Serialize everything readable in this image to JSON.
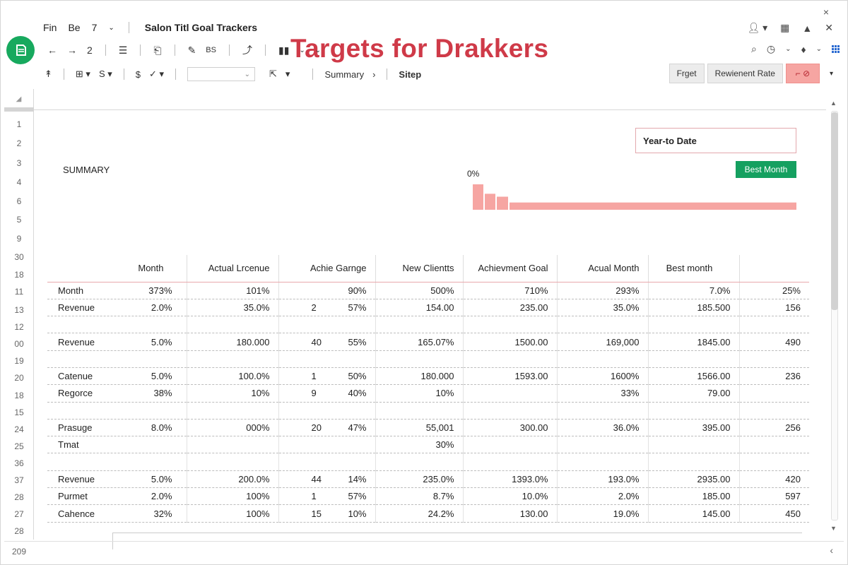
{
  "window": {
    "close_glyph": "×"
  },
  "menubar": {
    "items": [
      "Fin",
      "Be",
      "7"
    ],
    "doc_title": "Salon Titl Goal Trackers"
  },
  "headline": "Targets for Drakkers",
  "toolbar": {
    "undo": "←",
    "redo": "→",
    "count": "2",
    "font_size_label": "BS"
  },
  "formula_bar": {
    "alignment_label": "⁋",
    "currency_label": "$",
    "breadcrumb": [
      "Summary",
      "Sitep"
    ]
  },
  "right_buttons": {
    "primary": "Frget",
    "secondary": "Rewienent Rate"
  },
  "row_numbers": [
    "1",
    "2",
    "3",
    "4",
    "6",
    "5",
    "9",
    "30",
    "18",
    "11",
    "13",
    "12",
    "00",
    "19",
    "20",
    "18",
    "15",
    "24",
    "25",
    "36",
    "37",
    "28",
    "27",
    "28"
  ],
  "last_row_number": "209",
  "summary": {
    "label": "SUMMARY",
    "ytd_label": "Year-to Date",
    "best_month_button": "Best Month",
    "percent_label": "0%"
  },
  "sparkline": {
    "values": [
      35,
      22,
      18,
      10
    ]
  },
  "table": {
    "headers": [
      "Month",
      "Actual Lrcenue",
      "Achie Garnge",
      "New Clientts",
      "Achievment Goal",
      "Acual Month",
      "Best month",
      ""
    ],
    "rows": [
      {
        "name": "Month",
        "c1": "373%",
        "c2": "101%",
        "c3a": "",
        "c3b": "90%",
        "c4": "500%",
        "c5": "710%",
        "c6": "293%",
        "c7": "7.0%",
        "c8": "25%"
      },
      {
        "name": "Revenue",
        "c1": "2.0%",
        "c2": "35.0%",
        "c3a": "2",
        "c3b": "57%",
        "c4": "154.00",
        "c5": "235.00",
        "c6": "35.0%",
        "c7": "185.500",
        "c8": "156"
      },
      {
        "name": "",
        "c1": "",
        "c2": "",
        "c3a": "",
        "c3b": "",
        "c4": "",
        "c5": "",
        "c6": "",
        "c7": "",
        "c8": ""
      },
      {
        "name": "Revenue",
        "c1": "5.0%",
        "c2": "180.000",
        "c3a": "40",
        "c3b": "55%",
        "c4": "165.07%",
        "c5": "1500.00",
        "c6": "169,000",
        "c7": "1845.00",
        "c8": "490"
      },
      {
        "name": "",
        "c1": "",
        "c2": "",
        "c3a": "",
        "c3b": "",
        "c4": "",
        "c5": "",
        "c6": "",
        "c7": "",
        "c8": ""
      },
      {
        "name": "Catenue",
        "c1": "5.0%",
        "c2": "100.0%",
        "c3a": "1",
        "c3b": "50%",
        "c4": "180.000",
        "c5": "1593.00",
        "c6": "1600%",
        "c7": "1566.00",
        "c8": "236"
      },
      {
        "name": "Regorce",
        "c1": "38%",
        "c2": "10%",
        "c3a": "9",
        "c3b": "40%",
        "c4": "10%",
        "c5": "",
        "c6": "33%",
        "c7": "79.00",
        "c8": ""
      },
      {
        "name": "",
        "c1": "",
        "c2": "",
        "c3a": "",
        "c3b": "",
        "c4": "",
        "c5": "",
        "c6": "",
        "c7": "",
        "c8": ""
      },
      {
        "name": "Prasuge",
        "c1": "8.0%",
        "c2": "000%",
        "c3a": "20",
        "c3b": "47%",
        "c4": "55,001",
        "c5": "300.00",
        "c6": "36.0%",
        "c7": "395.00",
        "c8": "256"
      },
      {
        "name": "Tmat",
        "c1": "",
        "c2": "",
        "c3a": "",
        "c3b": "",
        "c4": "30%",
        "c5": "",
        "c6": "",
        "c7": "",
        "c8": ""
      },
      {
        "name": "",
        "c1": "",
        "c2": "",
        "c3a": "",
        "c3b": "",
        "c4": "",
        "c5": "",
        "c6": "",
        "c7": "",
        "c8": ""
      },
      {
        "name": "Revenue",
        "c1": "5.0%",
        "c2": "200.0%",
        "c3a": "44",
        "c3b": "14%",
        "c4": "235.0%",
        "c5": "1393.0%",
        "c6": "193.0%",
        "c7": "2935.00",
        "c8": "420"
      },
      {
        "name": "Purmet",
        "c1": "2.0%",
        "c2": "100%",
        "c3a": "1",
        "c3b": "57%",
        "c4": "8.7%",
        "c5": "10.0%",
        "c6": "2.0%",
        "c7": "185.00",
        "c8": "597"
      },
      {
        "name": "Cahence",
        "c1": "32%",
        "c2": "100%",
        "c3a": "15",
        "c3b": "10%",
        "c4": "24.2%",
        "c5": "130.00",
        "c6": "19.0%",
        "c7": "145.00",
        "c8": "450"
      }
    ]
  },
  "colors": {
    "brand_green": "#17a95e",
    "headline_red": "#cf3a48",
    "accent_pink": "#f6a5a2"
  }
}
